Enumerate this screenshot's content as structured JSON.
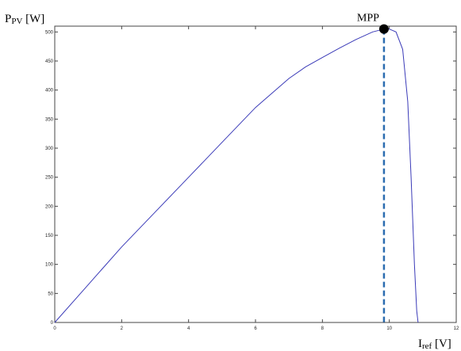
{
  "chart_data": {
    "type": "line",
    "title": "",
    "ylabel": {
      "main": "P",
      "sub": "PV",
      "unit": " [W]"
    },
    "xlabel": {
      "main": "I",
      "sub": "ref",
      "unit": " [V]"
    },
    "xlim": [
      0,
      12
    ],
    "ylim": [
      0,
      510
    ],
    "xticks": [
      0,
      2,
      4,
      6,
      8,
      10,
      12
    ],
    "yticks": [
      0,
      50,
      100,
      150,
      200,
      250,
      300,
      350,
      400,
      450,
      500
    ],
    "grid": false,
    "legend": "none",
    "series": [
      {
        "color": "#3b3bb8",
        "x": [
          0,
          1,
          2,
          3,
          4,
          5,
          6,
          7,
          7.5,
          8,
          8.5,
          9,
          9.5,
          9.84,
          10.0,
          10.2,
          10.4,
          10.55,
          10.65,
          10.75,
          10.82,
          10.86
        ],
        "y": [
          0,
          65,
          130,
          190,
          250,
          310,
          370,
          420,
          440,
          456,
          472,
          487,
          500,
          505,
          505,
          500,
          470,
          380,
          250,
          100,
          20,
          0
        ]
      }
    ],
    "annotations": [
      {
        "label": "MPP",
        "x": 9.84,
        "y": 505,
        "marker": "filled-circle",
        "guide": "dashed-vertical",
        "guide_color": "#2b6cb0"
      }
    ]
  }
}
